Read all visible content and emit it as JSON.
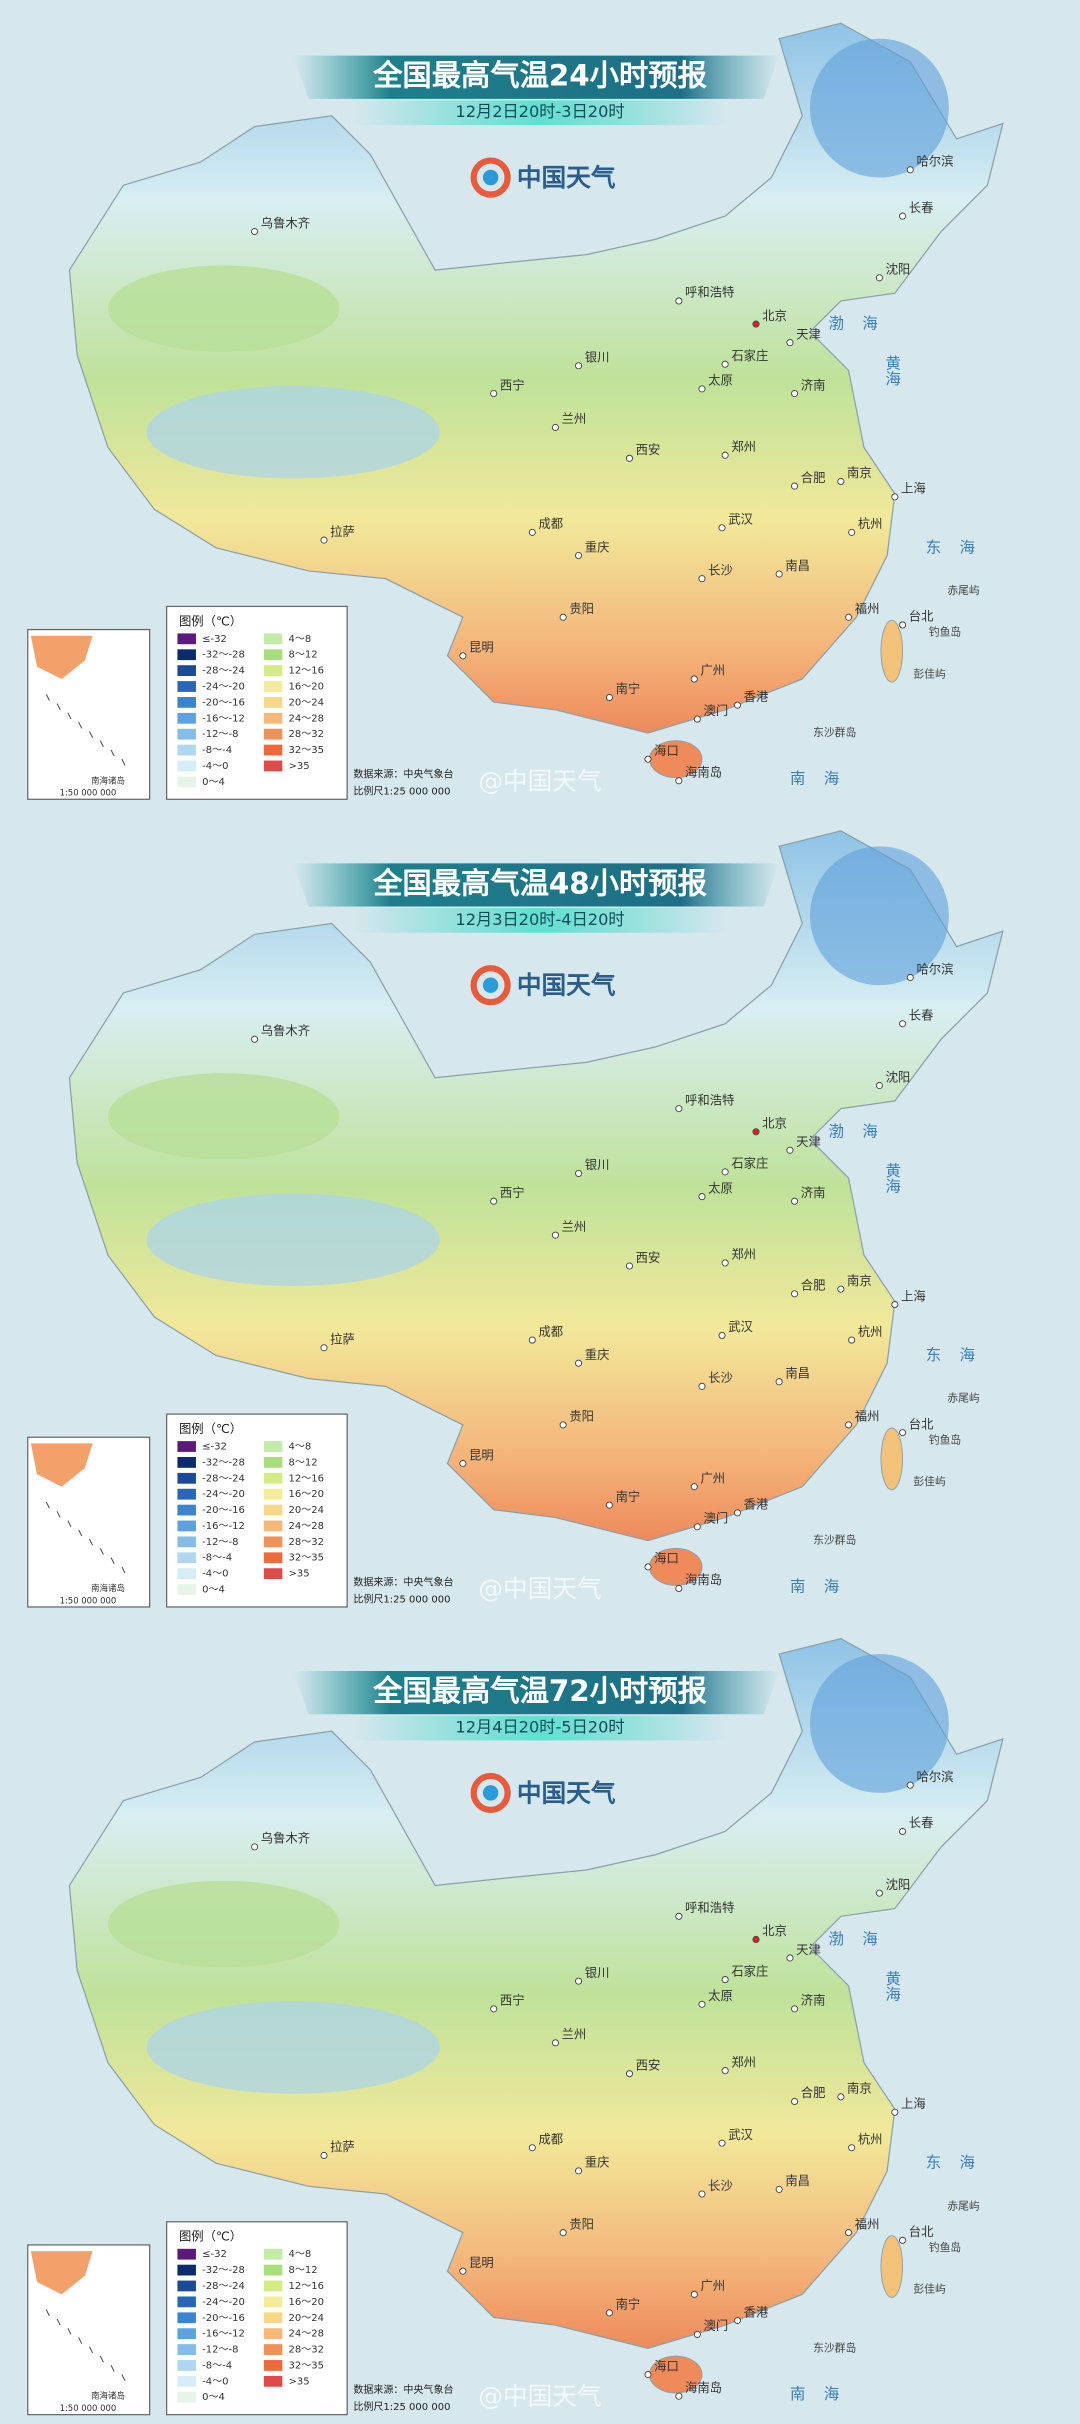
{
  "panels": [
    {
      "title": "全国最高气温24小时预报",
      "subtitle": "12月2日20时-3日20时"
    },
    {
      "title": "全国最高气温48小时预报",
      "subtitle": "12月3日20时-4日20时"
    },
    {
      "title": "全国最高气温72小时预报",
      "subtitle": "12月4日20时-5日20时"
    }
  ],
  "logo": "中国天气",
  "cities": [
    "乌鲁木齐",
    "哈尔滨",
    "长春",
    "沈阳",
    "呼和浩特",
    "北京",
    "天津",
    "石家庄",
    "太原",
    "济南",
    "银川",
    "西宁",
    "兰州",
    "郑州",
    "西安",
    "合肥",
    "南京",
    "上海",
    "武汉",
    "杭州",
    "成都",
    "拉萨",
    "重庆",
    "长沙",
    "南昌",
    "贵阳",
    "福州",
    "台北",
    "昆明",
    "南宁",
    "广州",
    "香港",
    "澳门",
    "海口",
    "海南岛"
  ],
  "seas": [
    "渤海",
    "黄海",
    "东海",
    "南海"
  ],
  "islands": [
    "赤尾屿",
    "钓鱼岛",
    "彭佳屿",
    "东沙群岛"
  ],
  "legend": {
    "title": "图例（℃）",
    "items": [
      {
        "label": "≤-32",
        "color": "#5b1a7a"
      },
      {
        "label": "-32～-28",
        "color": "#0c2a6e"
      },
      {
        "label": "-28～-24",
        "color": "#1a4a98"
      },
      {
        "label": "-24～-20",
        "color": "#2a66b8"
      },
      {
        "label": "-20～-16",
        "color": "#3d84cf"
      },
      {
        "label": "-16～-12",
        "color": "#5da2de"
      },
      {
        "label": "-12～-8",
        "color": "#86bde8"
      },
      {
        "label": "-8～-4",
        "color": "#b0d7f0"
      },
      {
        "label": "-4～0",
        "color": "#d6ecf6"
      },
      {
        "label": "0～4",
        "color": "#e6f5e8"
      },
      {
        "label": "4～8",
        "color": "#c4eaa8"
      },
      {
        "label": "8～12",
        "color": "#a8df7c"
      },
      {
        "label": "12～16",
        "color": "#d4ec86"
      },
      {
        "label": "16～20",
        "color": "#f4ec9a"
      },
      {
        "label": "20～24",
        "color": "#f6d88a"
      },
      {
        "label": "24～28",
        "color": "#f4b878"
      },
      {
        "label": "28～32",
        "color": "#f09258"
      },
      {
        "label": "32～35",
        "color": "#ec6a3c"
      },
      {
        "label": ">35",
        "color": "#e04a4a"
      }
    ]
  },
  "inset": {
    "label": "南海诸岛",
    "scale": "1:50 000 000"
  },
  "footer": {
    "source": "数据来源：中央气象台",
    "scale": "比例尺1:25 000 000"
  },
  "watermark": "@中国天气"
}
